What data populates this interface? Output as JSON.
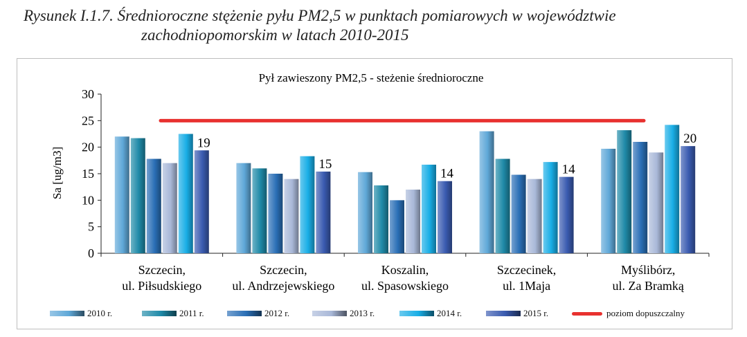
{
  "caption": {
    "line1": "Rysunek I.1.7. Średnioroczne stężenie pyłu PM2,5 w punktach pomiarowych w województwie",
    "line2": "zachodniopomorskim w latach 2010-2015"
  },
  "chart_data": {
    "type": "bar",
    "title": "Pył zawieszony PM2,5 - steżenie średnioroczne",
    "ylabel": "Sa [ug/m3]",
    "ylim": [
      0,
      30
    ],
    "yticks": [
      "0",
      "5",
      "10",
      "15",
      "20",
      "25",
      "30"
    ],
    "grid": false,
    "legend_position": "bottom",
    "categories": [
      [
        "Szczecin,",
        "ul. Piłsudskiego"
      ],
      [
        "Szczecin,",
        "ul. Andrzejewskiego"
      ],
      [
        "Koszalin,",
        "ul. Spasowskiego"
      ],
      [
        "Szczecinek,",
        "ul. 1Maja"
      ],
      [
        "Myślibórz,",
        "ul. Za Bramką"
      ]
    ],
    "series": [
      {
        "name": "2010 r.",
        "color": "#5fa8d8",
        "values": [
          22,
          17,
          15.3,
          23,
          19.7
        ]
      },
      {
        "name": "2011 r.",
        "color": "#1f8aa8",
        "values": [
          21.7,
          16,
          12.8,
          17.8,
          23.2
        ]
      },
      {
        "name": "2012 r.",
        "color": "#2a6fb6",
        "values": [
          17.8,
          15,
          10,
          14.8,
          21
        ]
      },
      {
        "name": "2013 r.",
        "color": "#a9b8d8",
        "values": [
          17,
          14,
          12,
          14,
          19
        ]
      },
      {
        "name": "2014 r.",
        "color": "#19aee6",
        "values": [
          22.5,
          18.3,
          16.7,
          17.2,
          24.2
        ]
      },
      {
        "name": "2015 r.",
        "color": "#3a5bb0",
        "values": [
          19.4,
          15.4,
          13.6,
          14.4,
          20.2
        ]
      }
    ],
    "data_labels": [
      {
        "category_index": 0,
        "series_index": 5,
        "text": "19"
      },
      {
        "category_index": 1,
        "series_index": 5,
        "text": "15"
      },
      {
        "category_index": 2,
        "series_index": 5,
        "text": "14"
      },
      {
        "category_index": 3,
        "series_index": 5,
        "text": "14"
      },
      {
        "category_index": 4,
        "series_index": 5,
        "text": "20"
      }
    ],
    "reference_line": {
      "name": "poziom dopuszczalny",
      "value": 25,
      "color": "#e8312f"
    }
  }
}
